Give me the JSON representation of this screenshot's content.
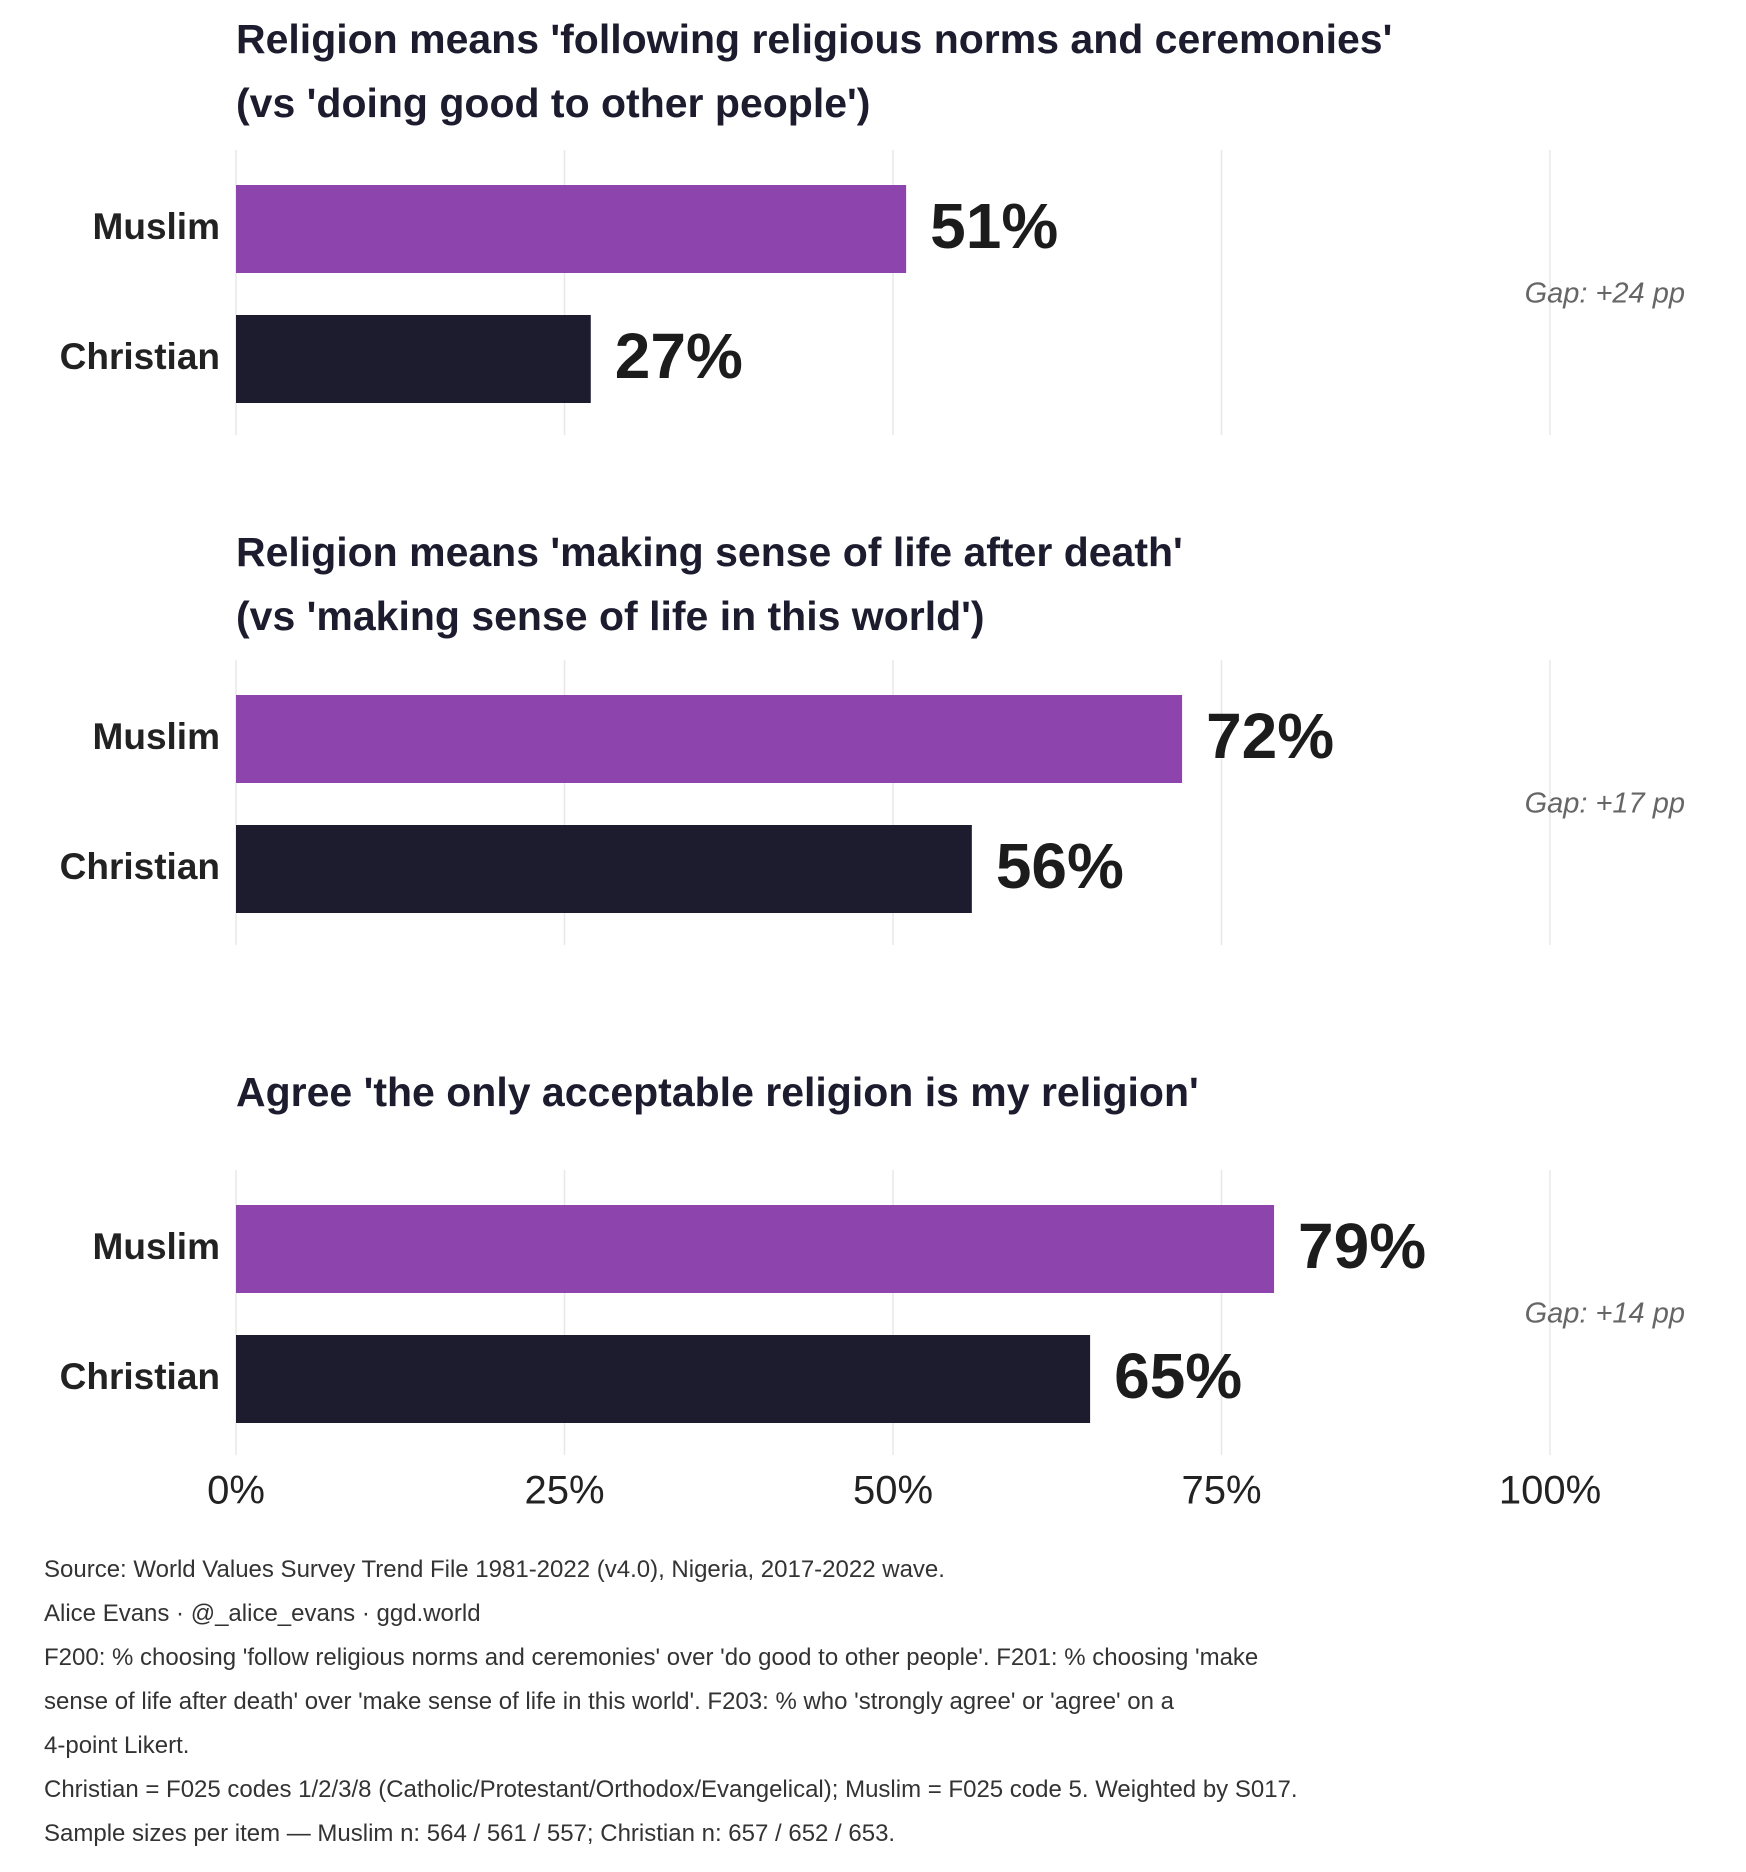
{
  "chart_data": {
    "type": "bar",
    "orientation": "horizontal",
    "categories": [
      "Muslim",
      "Christian"
    ],
    "xlim": [
      0,
      100
    ],
    "x_ticks": [
      "0%",
      "25%",
      "50%",
      "75%",
      "100%"
    ],
    "x_tick_values": [
      0,
      25,
      50,
      75,
      100
    ],
    "grid": true,
    "colors": {
      "Muslim": "#8e44ad",
      "Christian": "#1c1c2e"
    },
    "panels": [
      {
        "title_lines": [
          "Religion means 'following religious norms and ceremonies'",
          "(vs 'doing good to other people')"
        ],
        "values": [
          51,
          27
        ],
        "value_labels": [
          "51%",
          "27%"
        ],
        "gap_label": "Gap: +24 pp"
      },
      {
        "title_lines": [
          "Religion means 'making sense of life after death'",
          "(vs 'making sense of life in this world')"
        ],
        "values": [
          72,
          56
        ],
        "value_labels": [
          "72%",
          "56%"
        ],
        "gap_label": "Gap: +17 pp"
      },
      {
        "title_lines": [
          "Agree 'the only acceptable religion is my religion'"
        ],
        "values": [
          79,
          65
        ],
        "value_labels": [
          "79%",
          "65%"
        ],
        "gap_label": "Gap: +14 pp"
      }
    ]
  },
  "footer": {
    "source": "Source: World Values Survey Trend File 1981-2022 (v4.0), Nigeria, 2017-2022 wave.",
    "author": "Alice Evans · @_alice_evans · ggd.world",
    "note_line1": "F200: % choosing 'follow religious norms and ceremonies' over 'do good to other people'. F201: % choosing 'make",
    "note_line2": "sense of life after death' over 'make sense of life in this world'. F203: % who 'strongly agree' or 'agree' on a",
    "note_line3": "4-point Likert.",
    "definitions": "Christian = F025 codes 1/2/3/8 (Catholic/Protestant/Orthodox/Evangelical); Muslim = F025 code 5. Weighted by S017.",
    "sample_sizes": "Sample sizes per item — Muslim n: 564 / 561 / 557; Christian n: 657 / 652 / 653."
  }
}
